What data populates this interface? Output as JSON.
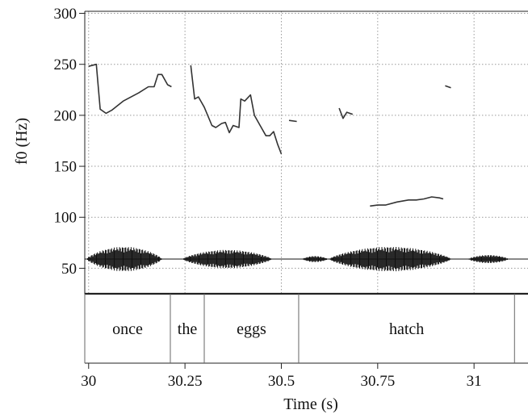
{
  "chart_data": {
    "type": "line",
    "xlabel": "Time (s)",
    "ylabel": "f0 (Hz)",
    "xlim": [
      29.99,
      31.14
    ],
    "ylim": [
      25,
      302
    ],
    "x_ticks": [
      {
        "value": 30,
        "label": "30"
      },
      {
        "value": 30.25,
        "label": "30.25"
      },
      {
        "value": 30.5,
        "label": "30.5"
      },
      {
        "value": 30.75,
        "label": "30.75"
      },
      {
        "value": 31,
        "label": "31"
      }
    ],
    "y_ticks": [
      {
        "value": 50,
        "label": "50"
      },
      {
        "value": 100,
        "label": "100"
      },
      {
        "value": 150,
        "label": "150"
      },
      {
        "value": 200,
        "label": "200"
      },
      {
        "value": 250,
        "label": "250"
      },
      {
        "value": 300,
        "label": "300"
      }
    ],
    "grid": true,
    "pitch_segments": [
      [
        [
          30.0,
          248
        ],
        [
          30.02,
          250
        ],
        [
          30.03,
          206
        ],
        [
          30.045,
          202
        ],
        [
          30.06,
          205
        ],
        [
          30.09,
          214
        ],
        [
          30.13,
          222
        ],
        [
          30.155,
          228
        ],
        [
          30.17,
          228
        ],
        [
          30.18,
          240
        ],
        [
          30.19,
          240
        ],
        [
          30.205,
          230
        ],
        [
          30.215,
          228
        ]
      ],
      [
        [
          30.265,
          249
        ],
        [
          30.275,
          216
        ],
        [
          30.285,
          218
        ],
        [
          30.3,
          208
        ],
        [
          30.32,
          190
        ],
        [
          30.33,
          188
        ],
        [
          30.345,
          192
        ],
        [
          30.355,
          193
        ],
        [
          30.365,
          183
        ],
        [
          30.375,
          190
        ],
        [
          30.39,
          188
        ],
        [
          30.395,
          216
        ],
        [
          30.405,
          214
        ],
        [
          30.42,
          220
        ],
        [
          30.43,
          200
        ],
        [
          30.445,
          190
        ],
        [
          30.46,
          180
        ],
        [
          30.47,
          180
        ],
        [
          30.48,
          184
        ],
        [
          30.49,
          172
        ],
        [
          30.5,
          162
        ]
      ],
      [
        [
          30.52,
          195
        ],
        [
          30.54,
          194
        ]
      ],
      [
        [
          30.65,
          207
        ],
        [
          30.66,
          197
        ],
        [
          30.67,
          203
        ],
        [
          30.685,
          201
        ]
      ],
      [
        [
          30.73,
          111
        ],
        [
          30.75,
          112
        ],
        [
          30.77,
          112
        ],
        [
          30.8,
          115
        ],
        [
          30.83,
          117
        ],
        [
          30.85,
          117
        ],
        [
          30.87,
          118
        ],
        [
          30.89,
          120
        ],
        [
          30.91,
          119
        ],
        [
          30.92,
          118
        ]
      ],
      [
        [
          30.925,
          229
        ],
        [
          30.94,
          227
        ]
      ]
    ],
    "waveform": {
      "baseline_hz": 59,
      "bursts": [
        {
          "start": 29.995,
          "end": 30.19,
          "amplitude_hz": 12
        },
        {
          "start": 30.245,
          "end": 30.475,
          "amplitude_hz": 9
        },
        {
          "start": 30.555,
          "end": 30.62,
          "amplitude_hz": 3
        },
        {
          "start": 30.625,
          "end": 30.94,
          "amplitude_hz": 12
        },
        {
          "start": 30.985,
          "end": 31.09,
          "amplitude_hz": 4
        }
      ]
    },
    "words": [
      {
        "text": "once",
        "start": 29.99,
        "end": 30.212
      },
      {
        "text": "the",
        "start": 30.212,
        "end": 30.3
      },
      {
        "text": "eggs",
        "start": 30.3,
        "end": 30.545
      },
      {
        "text": "hatch",
        "start": 30.545,
        "end": 31.105
      }
    ],
    "word_boundaries": [
      29.99,
      30.212,
      30.3,
      30.545,
      31.105
    ]
  }
}
